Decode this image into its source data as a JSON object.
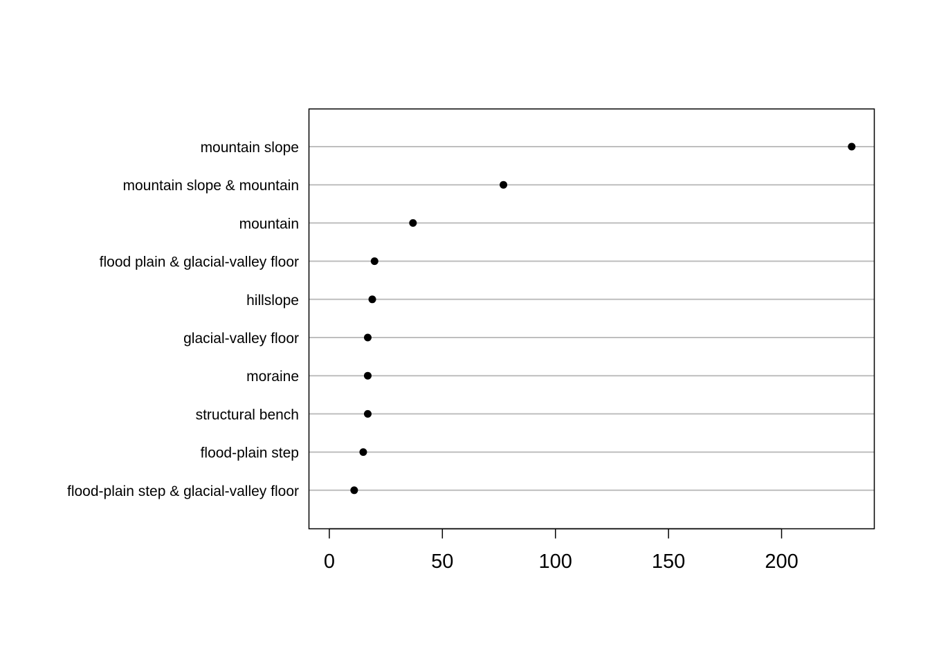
{
  "chart_data": {
    "type": "scatter",
    "categories": [
      "mountain slope",
      "mountain slope & mountain",
      "mountain",
      "flood plain & glacial-valley floor",
      "hillslope",
      "glacial-valley floor",
      "moraine",
      "structural bench",
      "flood-plain step",
      "flood-plain step & glacial-valley floor"
    ],
    "values": [
      231,
      77,
      37,
      20,
      19,
      17,
      17,
      17,
      15,
      11
    ],
    "xlim": [
      -9,
      241
    ],
    "xticks": [
      0,
      50,
      100,
      150,
      200
    ],
    "grid": "horizontal",
    "title": "",
    "xlabel": "",
    "ylabel": "",
    "colors": {
      "point": "#000000",
      "gridline": "#bebebe",
      "frame": "#000000"
    }
  }
}
